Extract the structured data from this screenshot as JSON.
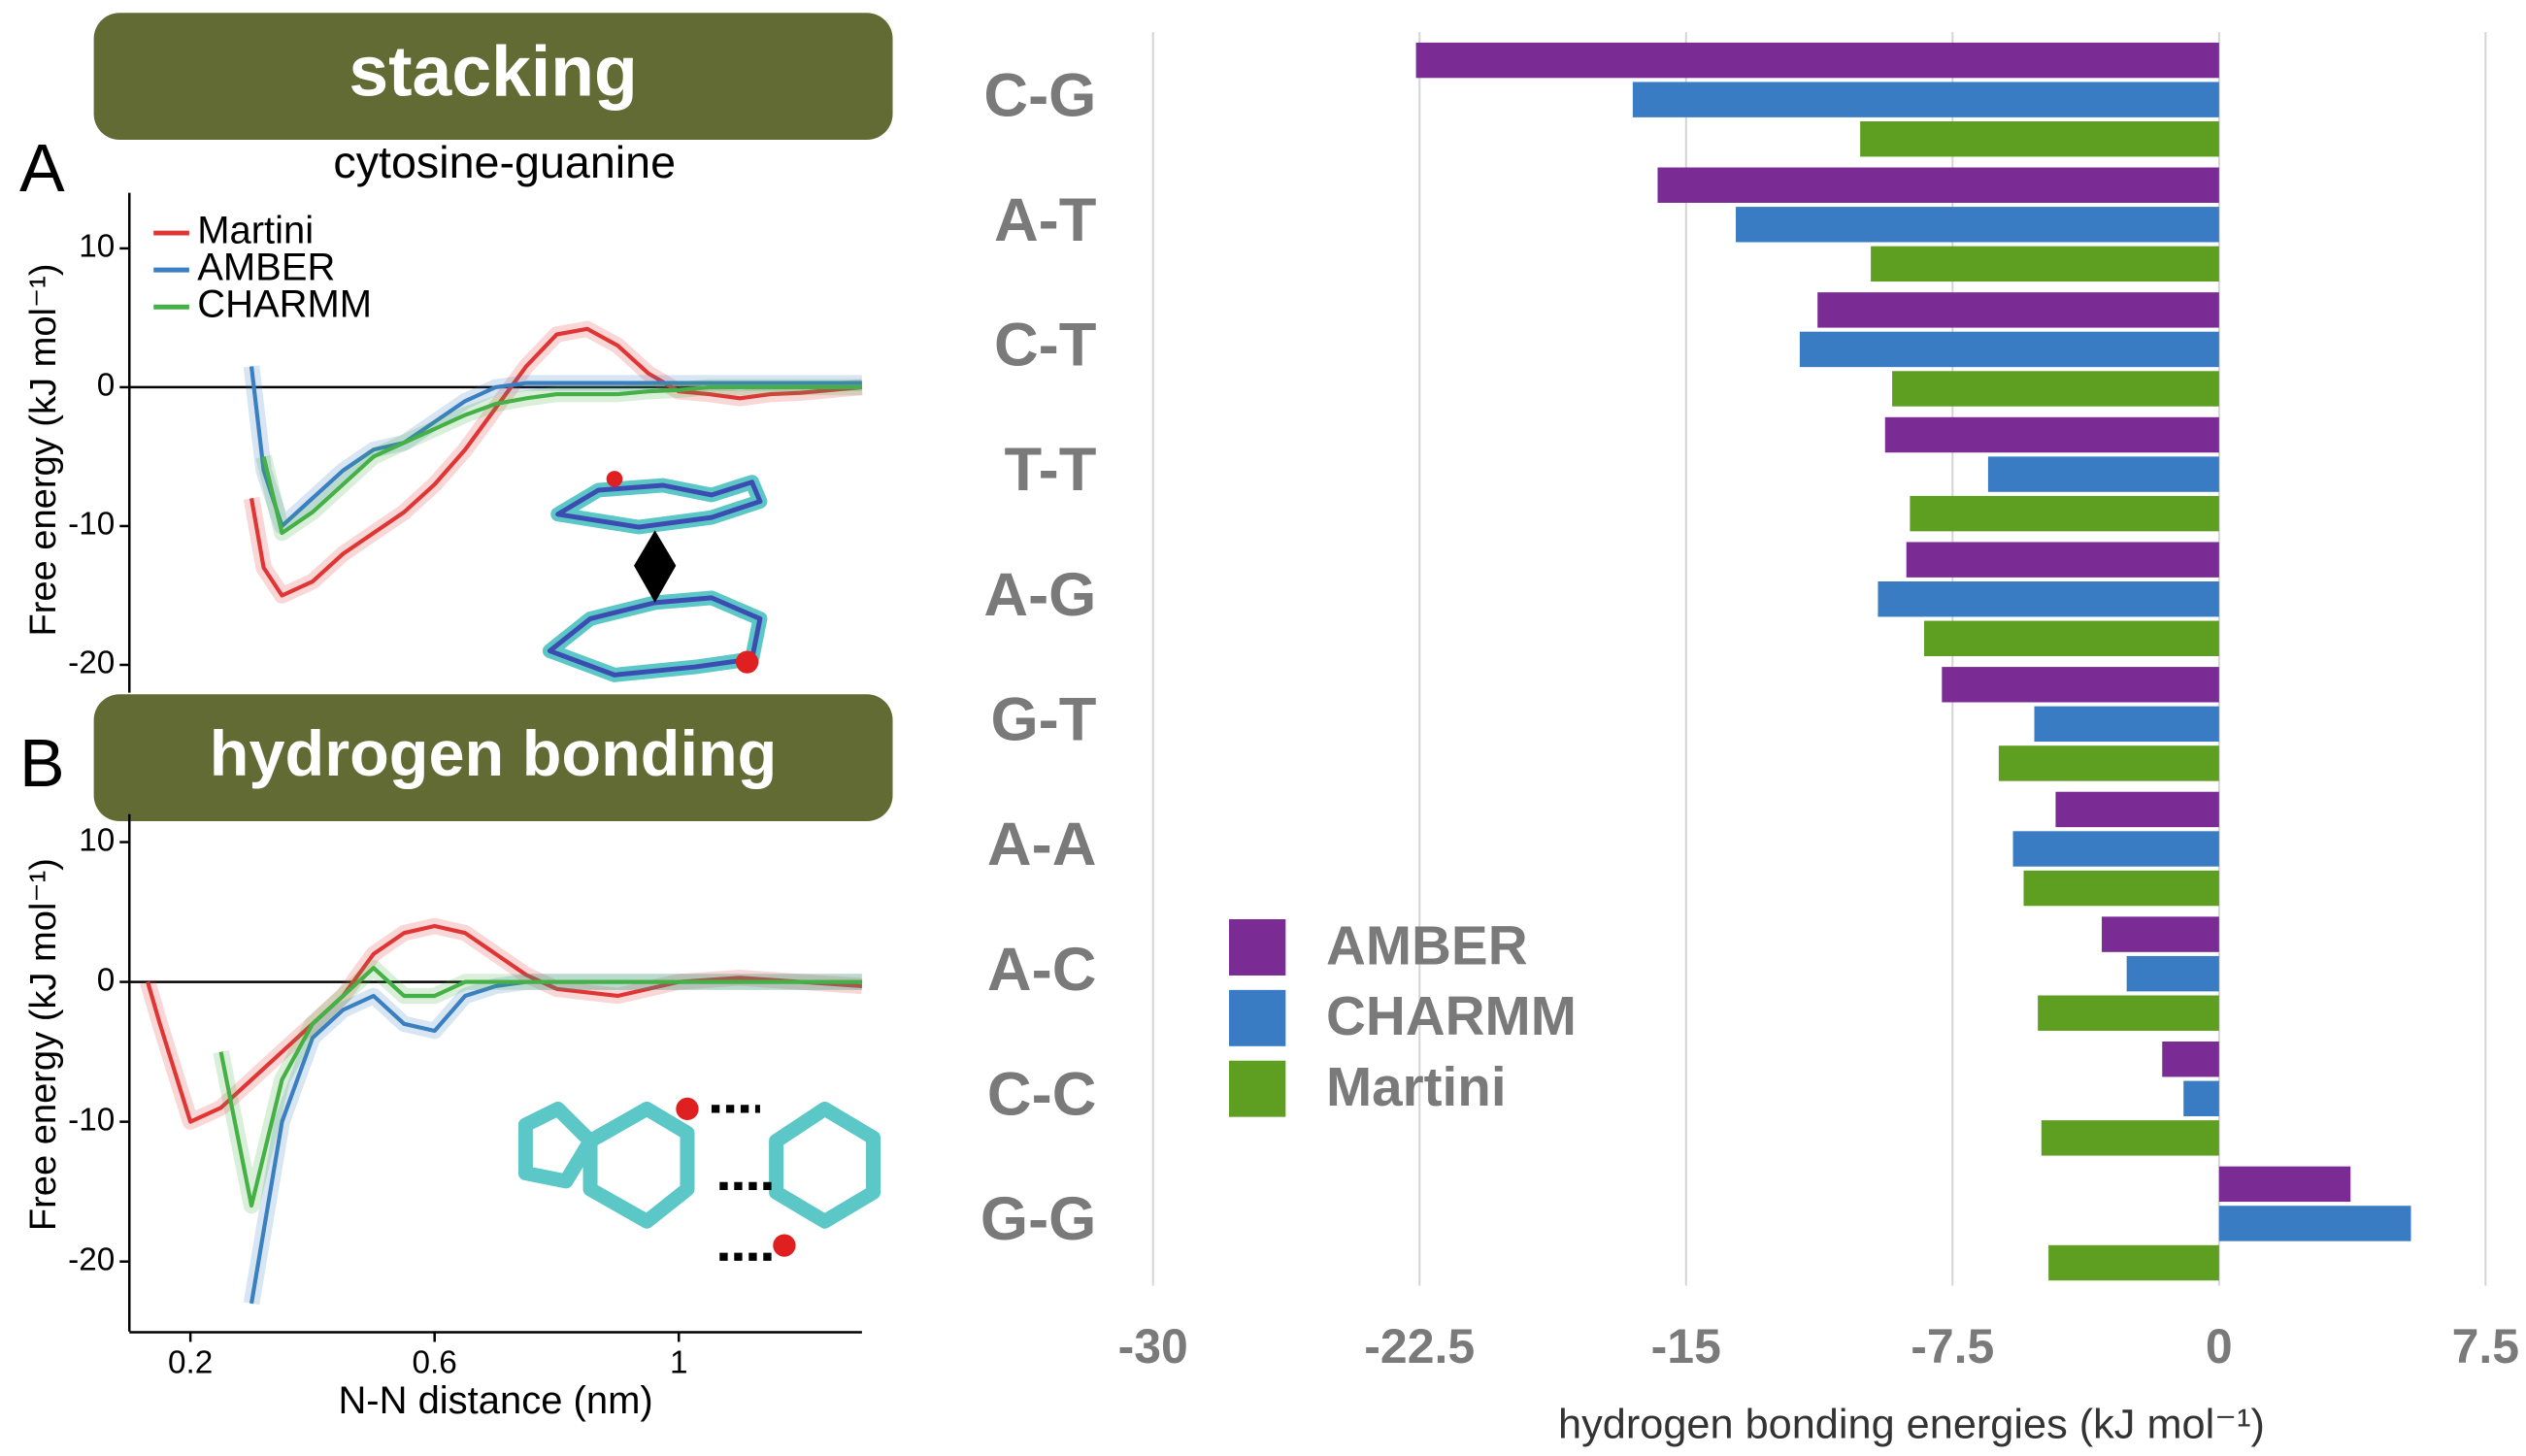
{
  "chart_data": [
    {
      "type": "line",
      "panel_label": "A",
      "title": "stacking",
      "subtitle": "cytosine-guanine",
      "ylabel": "Free energy (kJ mol⁻¹)",
      "x": [
        0.3,
        0.32,
        0.35,
        0.4,
        0.45,
        0.5,
        0.55,
        0.6,
        0.65,
        0.7,
        0.75,
        0.8,
        0.85,
        0.9,
        0.95,
        1.0,
        1.05,
        1.1,
        1.15,
        1.2,
        1.25,
        1.3
      ],
      "series": [
        {
          "name": "Martini",
          "color": "#e03535",
          "values": [
            -8,
            -13,
            -15,
            -14,
            -12,
            -10.5,
            -9,
            -7,
            -4.5,
            -1.5,
            1.5,
            3.8,
            4.2,
            3,
            1,
            -0.3,
            -0.5,
            -0.8,
            -0.5,
            -0.4,
            -0.2,
            0
          ]
        },
        {
          "name": "AMBER",
          "color": "#3a7fc0",
          "values": [
            1.5,
            -6,
            -10,
            -8,
            -6,
            -4.5,
            -4,
            -2.5,
            -1,
            0,
            0.3,
            0.3,
            0.3,
            0.3,
            0.3,
            0.3,
            0.3,
            0.3,
            0.3,
            0.3,
            0.3,
            0.3
          ]
        },
        {
          "name": "CHARMM",
          "color": "#45b045",
          "values": [
            null,
            -5,
            -10.5,
            -9,
            -7,
            -5,
            -4,
            -3,
            -2,
            -1.2,
            -0.8,
            -0.5,
            -0.5,
            -0.5,
            -0.3,
            -0.2,
            0,
            0,
            0,
            0,
            0,
            0
          ]
        }
      ],
      "xlim": [
        0.1,
        1.3
      ],
      "ylim": [
        -22,
        14
      ],
      "yticks": [
        -20,
        -10,
        0,
        10
      ],
      "legend": "upper left"
    },
    {
      "type": "line",
      "panel_label": "B",
      "title": "hydrogen bonding",
      "xlabel": "N-N distance (nm)",
      "ylabel": "Free energy (kJ mol⁻¹)",
      "x": [
        0.13,
        0.15,
        0.2,
        0.25,
        0.3,
        0.35,
        0.4,
        0.45,
        0.5,
        0.55,
        0.6,
        0.65,
        0.7,
        0.75,
        0.8,
        0.9,
        1.0,
        1.1,
        1.2,
        1.3
      ],
      "series": [
        {
          "color": "#e03535",
          "values": [
            0,
            -3,
            -10,
            -9,
            -7,
            -5,
            -3,
            -1,
            2,
            3.5,
            4,
            3.5,
            2,
            0.5,
            -0.5,
            -1,
            0,
            0.3,
            0,
            -0.3
          ]
        },
        {
          "color": "#3a7fc0",
          "values": [
            null,
            null,
            null,
            null,
            -23,
            -10,
            -4,
            -2,
            -1,
            -3,
            -3.5,
            -1,
            -0.3,
            0,
            0,
            0,
            0,
            0,
            0,
            0
          ]
        },
        {
          "color": "#45b045",
          "values": [
            null,
            null,
            null,
            -5,
            -16,
            -7,
            -3,
            -1,
            1,
            -1,
            -1,
            0,
            0,
            0,
            0,
            0,
            0,
            0,
            0,
            0
          ]
        }
      ],
      "xlim": [
        0.1,
        1.3
      ],
      "xticks": [
        0.2,
        0.6,
        1.0
      ],
      "ylim": [
        -25,
        12
      ],
      "yticks": [
        -20,
        -10,
        0,
        10
      ]
    },
    {
      "type": "bar",
      "orientation": "horizontal",
      "categories": [
        "C-G",
        "A-T",
        "C-T",
        "T-T",
        "A-G",
        "G-T",
        "A-A",
        "A-C",
        "C-C",
        "G-G"
      ],
      "series": [
        {
          "name": "AMBER",
          "color": "#7a2b94",
          "values": [
            -22.6,
            -15.8,
            -11.3,
            -9.4,
            -8.8,
            -7.8,
            -4.6,
            -3.3,
            -1.6,
            3.7
          ]
        },
        {
          "name": "CHARMM",
          "color": "#3a7cc4",
          "values": [
            -16.5,
            -13.6,
            -11.8,
            -6.5,
            -9.6,
            -5.2,
            -5.8,
            -2.6,
            -1.0,
            5.4
          ]
        },
        {
          "name": "Martini",
          "color": "#5e9f22",
          "values": [
            -10.1,
            -9.8,
            -9.2,
            -8.7,
            -8.3,
            -6.2,
            -5.5,
            -5.1,
            -5.0,
            -4.8
          ]
        }
      ],
      "xlim": [
        -30,
        7.5
      ],
      "xticks": [
        -30,
        -22.5,
        -15,
        -7.5,
        0,
        7.5
      ],
      "xlabel": "hydrogen bonding energies (kJ mol⁻¹)",
      "grid": true,
      "legend": "lower left"
    }
  ]
}
